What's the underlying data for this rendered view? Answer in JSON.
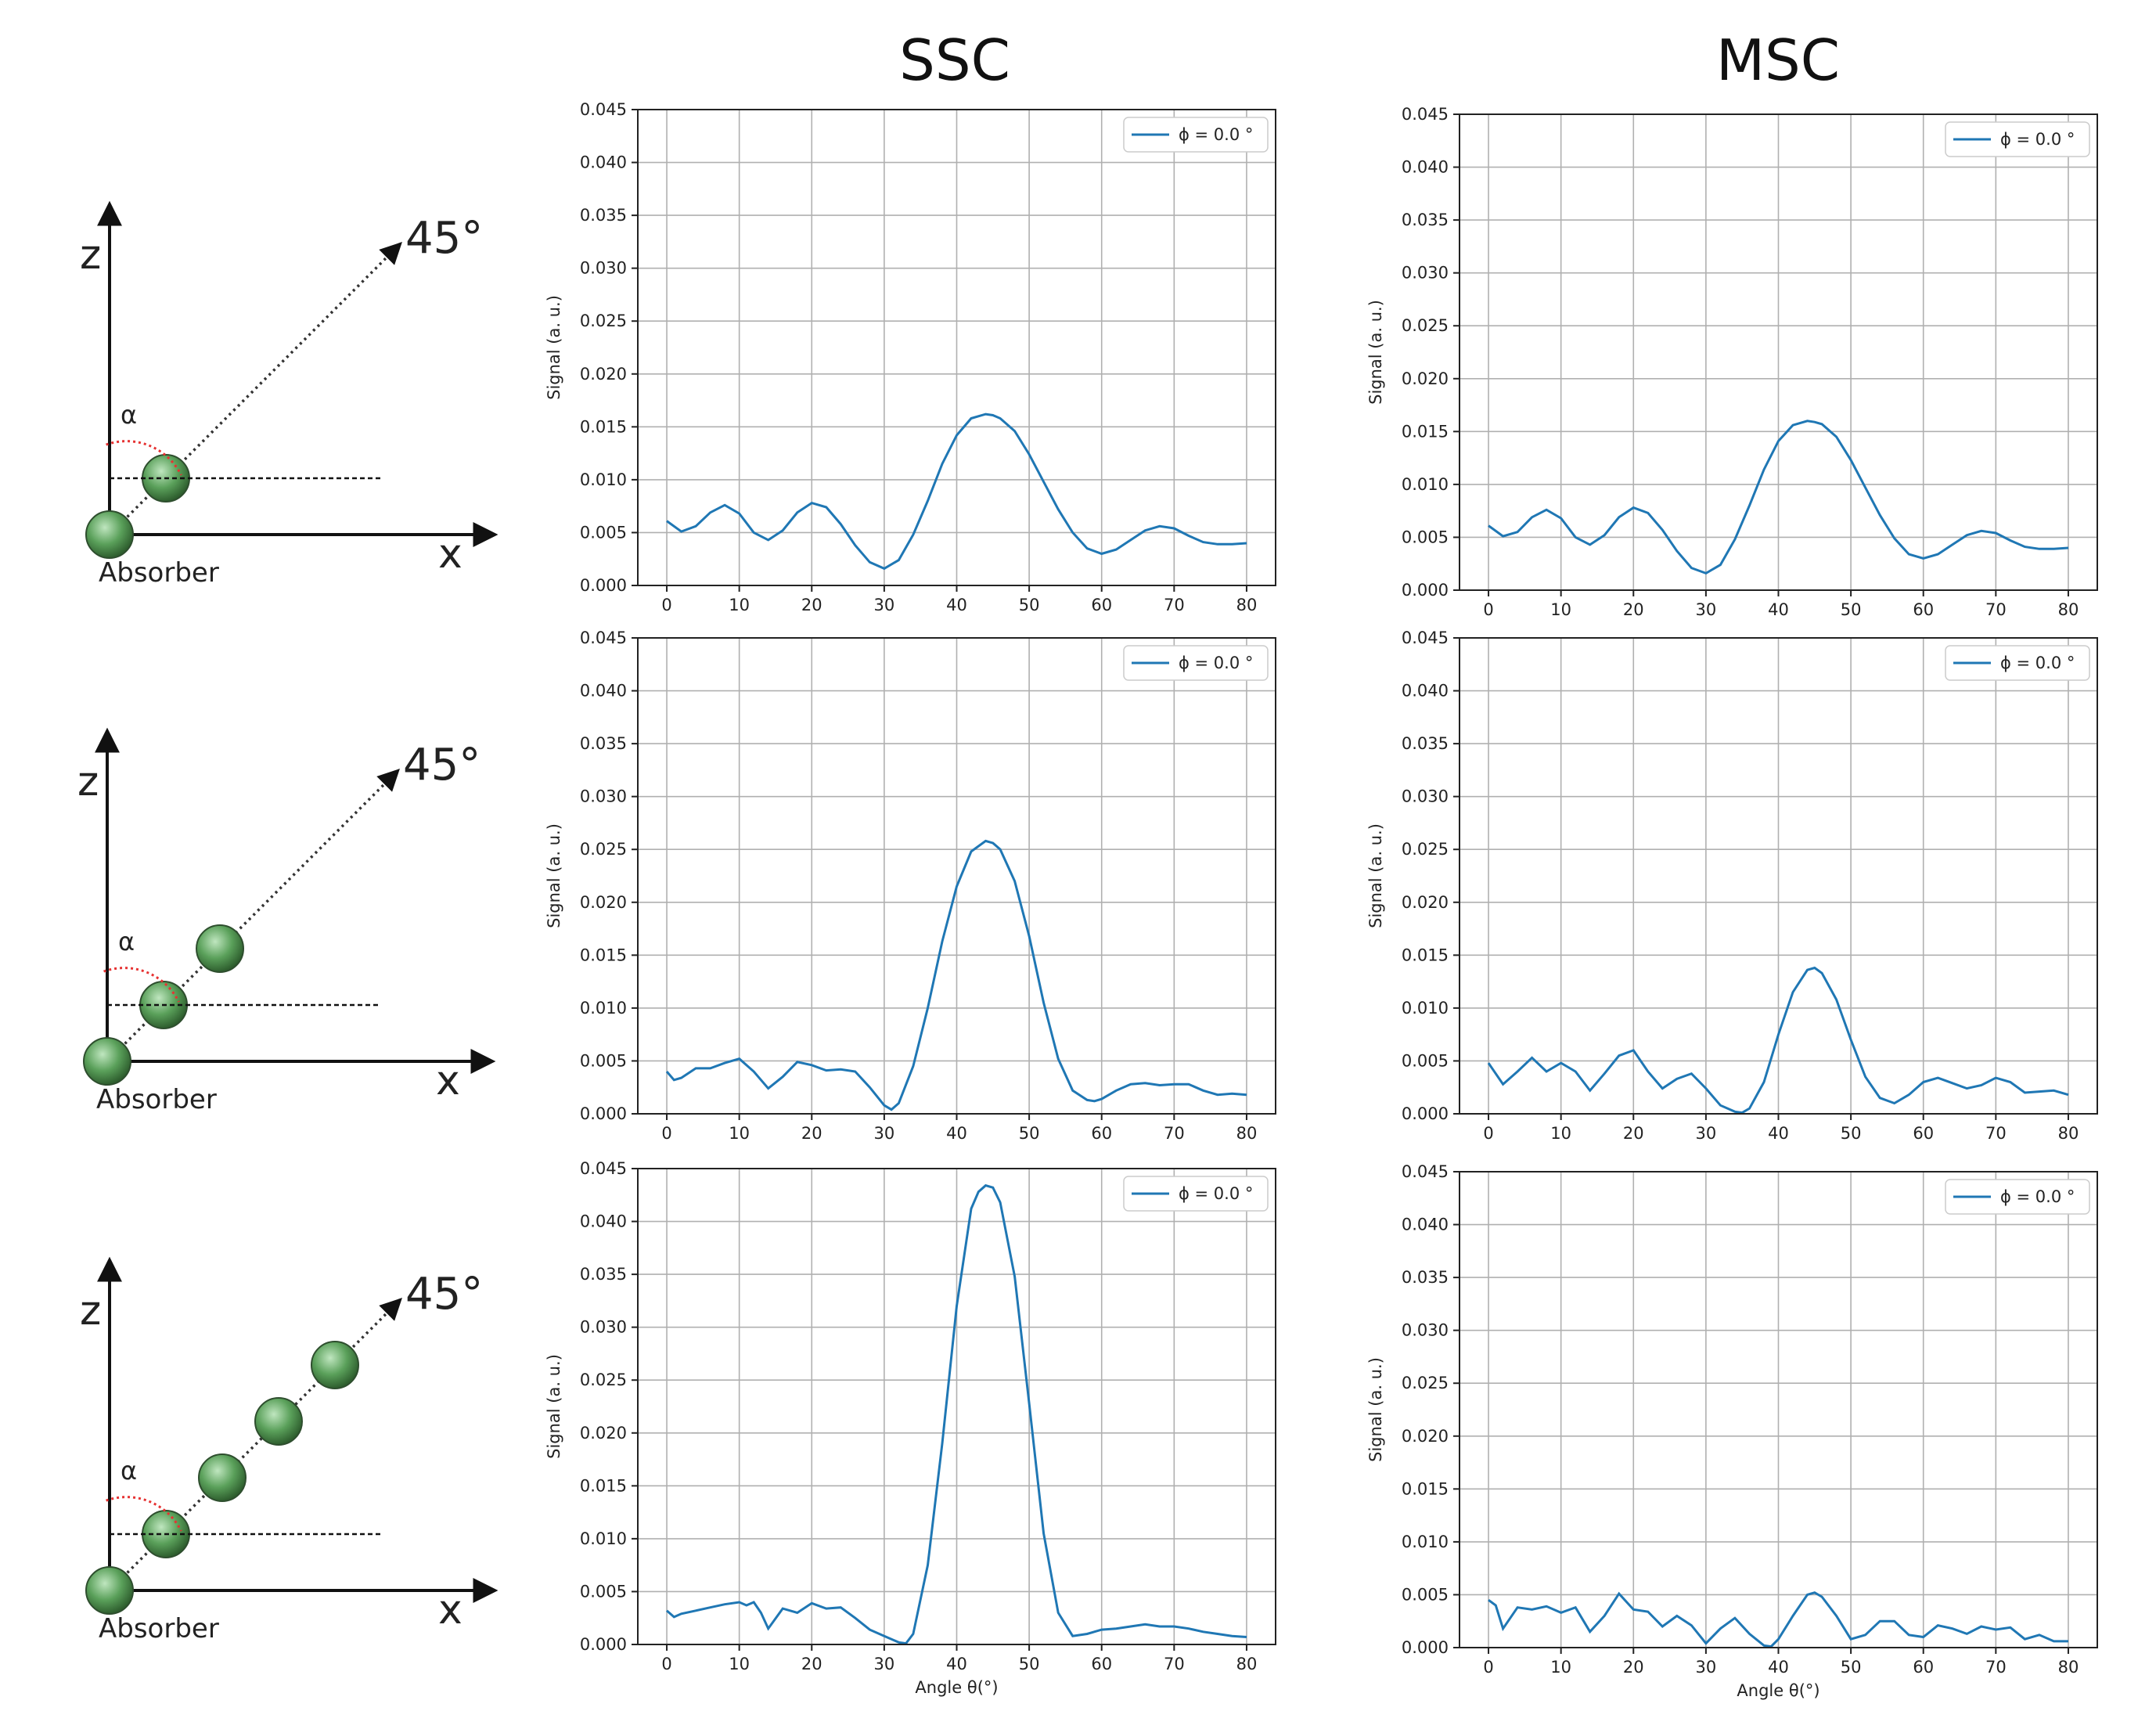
{
  "columns": {
    "ssc": "SSC",
    "msc": "MSC"
  },
  "diagrams": [
    {
      "z_label": "z",
      "x_label": "x",
      "angle_label": "45°",
      "alpha_label": "α",
      "absorber_label": "Absorber",
      "scatterers": 1
    },
    {
      "z_label": "z",
      "x_label": "x",
      "angle_label": "45°",
      "alpha_label": "α",
      "absorber_label": "Absorber",
      "scatterers": 2
    },
    {
      "z_label": "z",
      "x_label": "x",
      "angle_label": "45°",
      "alpha_label": "α",
      "absorber_label": "Absorber",
      "scatterers": 4
    }
  ],
  "colors": {
    "series": "#1f77b4",
    "atom": "#5aa05a",
    "alpha": "#e63232"
  },
  "chart_data": [
    {
      "type": "line",
      "panel": "SSC row 1",
      "ylabel": "Signal (a. u.)",
      "xlabel": "",
      "xlim": [
        0,
        80
      ],
      "ylim": [
        0,
        0.045
      ],
      "grid": true,
      "legend_position": "top-right",
      "xticks": [
        "0",
        "10",
        "20",
        "30",
        "40",
        "50",
        "60",
        "70",
        "80"
      ],
      "yticks": [
        "0.000",
        "0.005",
        "0.010",
        "0.015",
        "0.020",
        "0.025",
        "0.030",
        "0.035",
        "0.040",
        "0.045"
      ],
      "series": [
        {
          "name": "ϕ = 0.0 °",
          "x": [
            0,
            2,
            4,
            6,
            8,
            10,
            12,
            14,
            16,
            18,
            20,
            22,
            24,
            26,
            28,
            30,
            32,
            34,
            36,
            38,
            40,
            42,
            44,
            45,
            46,
            48,
            50,
            52,
            54,
            56,
            58,
            60,
            62,
            64,
            66,
            68,
            70,
            72,
            74,
            76,
            78,
            80
          ],
          "y": [
            0.0061,
            0.0051,
            0.0056,
            0.0069,
            0.0076,
            0.0068,
            0.005,
            0.0043,
            0.0052,
            0.0069,
            0.0078,
            0.0074,
            0.0058,
            0.0038,
            0.0022,
            0.0016,
            0.0024,
            0.0048,
            0.008,
            0.0115,
            0.0142,
            0.0158,
            0.0162,
            0.0161,
            0.0158,
            0.0146,
            0.0124,
            0.0098,
            0.0072,
            0.005,
            0.0035,
            0.003,
            0.0034,
            0.0043,
            0.0052,
            0.0056,
            0.0054,
            0.0047,
            0.0041,
            0.0039,
            0.0039,
            0.004
          ]
        }
      ]
    },
    {
      "type": "line",
      "panel": "MSC row 1",
      "ylabel": "Signal (a. u.)",
      "xlabel": "",
      "xlim": [
        0,
        80
      ],
      "ylim": [
        0,
        0.045
      ],
      "grid": true,
      "legend_position": "top-right",
      "xticks": [
        "0",
        "10",
        "20",
        "30",
        "40",
        "50",
        "60",
        "70",
        "80"
      ],
      "yticks": [
        "0.000",
        "0.005",
        "0.010",
        "0.015",
        "0.020",
        "0.025",
        "0.030",
        "0.035",
        "0.040",
        "0.045"
      ],
      "series": [
        {
          "name": "ϕ = 0.0 °",
          "x": [
            0,
            2,
            4,
            6,
            8,
            10,
            12,
            14,
            16,
            18,
            20,
            22,
            24,
            26,
            28,
            30,
            32,
            34,
            36,
            38,
            40,
            42,
            44,
            45,
            46,
            48,
            50,
            52,
            54,
            56,
            58,
            60,
            62,
            64,
            66,
            68,
            70,
            72,
            74,
            76,
            78,
            80
          ],
          "y": [
            0.0061,
            0.0051,
            0.0055,
            0.0069,
            0.0076,
            0.0068,
            0.005,
            0.0043,
            0.0052,
            0.0069,
            0.0078,
            0.0073,
            0.0057,
            0.0037,
            0.0021,
            0.0016,
            0.0024,
            0.0048,
            0.008,
            0.0114,
            0.0141,
            0.0156,
            0.016,
            0.0159,
            0.0157,
            0.0145,
            0.0123,
            0.0097,
            0.0071,
            0.0049,
            0.0034,
            0.003,
            0.0034,
            0.0043,
            0.0052,
            0.0056,
            0.0054,
            0.0047,
            0.0041,
            0.0039,
            0.0039,
            0.004
          ]
        }
      ]
    },
    {
      "type": "line",
      "panel": "SSC row 2",
      "ylabel": "Signal (a. u.)",
      "xlabel": "",
      "xlim": [
        0,
        80
      ],
      "ylim": [
        0,
        0.045
      ],
      "grid": true,
      "legend_position": "top-right",
      "xticks": [
        "0",
        "10",
        "20",
        "30",
        "40",
        "50",
        "60",
        "70",
        "80"
      ],
      "yticks": [
        "0.000",
        "0.005",
        "0.010",
        "0.015",
        "0.020",
        "0.025",
        "0.030",
        "0.035",
        "0.040",
        "0.045"
      ],
      "series": [
        {
          "name": "ϕ = 0.0 °",
          "x": [
            0,
            1,
            2,
            4,
            6,
            8,
            10,
            12,
            14,
            16,
            18,
            20,
            22,
            24,
            26,
            28,
            30,
            31,
            32,
            34,
            36,
            38,
            40,
            42,
            44,
            45,
            46,
            48,
            50,
            52,
            54,
            56,
            58,
            59,
            60,
            62,
            64,
            66,
            68,
            70,
            72,
            74,
            76,
            78,
            80
          ],
          "y": [
            0.004,
            0.0032,
            0.0034,
            0.0043,
            0.0043,
            0.0048,
            0.0052,
            0.004,
            0.0024,
            0.0035,
            0.0049,
            0.0046,
            0.0041,
            0.0042,
            0.004,
            0.0025,
            0.0008,
            0.0004,
            0.001,
            0.0045,
            0.01,
            0.0163,
            0.0215,
            0.0248,
            0.0258,
            0.0256,
            0.025,
            0.022,
            0.0168,
            0.0105,
            0.0052,
            0.0022,
            0.0013,
            0.0012,
            0.0014,
            0.0022,
            0.0028,
            0.0029,
            0.0027,
            0.0028,
            0.0028,
            0.0022,
            0.0018,
            0.0019,
            0.0018
          ]
        }
      ]
    },
    {
      "type": "line",
      "panel": "MSC row 2",
      "ylabel": "Signal (a. u.)",
      "xlabel": "",
      "xlim": [
        0,
        80
      ],
      "ylim": [
        0,
        0.045
      ],
      "grid": true,
      "legend_position": "top-right",
      "xticks": [
        "0",
        "10",
        "20",
        "30",
        "40",
        "50",
        "60",
        "70",
        "80"
      ],
      "yticks": [
        "0.000",
        "0.005",
        "0.010",
        "0.015",
        "0.020",
        "0.025",
        "0.030",
        "0.035",
        "0.040",
        "0.045"
      ],
      "series": [
        {
          "name": "ϕ = 0.0 °",
          "x": [
            0,
            2,
            4,
            6,
            8,
            10,
            12,
            14,
            16,
            18,
            20,
            22,
            24,
            26,
            28,
            30,
            32,
            34,
            35,
            36,
            38,
            40,
            42,
            44,
            45,
            46,
            48,
            50,
            52,
            54,
            56,
            58,
            60,
            62,
            64,
            66,
            68,
            70,
            72,
            74,
            76,
            78,
            80
          ],
          "y": [
            0.0048,
            0.0028,
            0.004,
            0.0053,
            0.004,
            0.0048,
            0.004,
            0.0022,
            0.0038,
            0.0055,
            0.006,
            0.004,
            0.0024,
            0.0033,
            0.0038,
            0.0024,
            0.0008,
            0.0002,
            0.0001,
            0.0005,
            0.003,
            0.0075,
            0.0115,
            0.0136,
            0.0138,
            0.0133,
            0.0108,
            0.007,
            0.0035,
            0.0015,
            0.001,
            0.0018,
            0.003,
            0.0034,
            0.0029,
            0.0024,
            0.0027,
            0.0034,
            0.003,
            0.002,
            0.0021,
            0.0022,
            0.0018
          ]
        }
      ]
    },
    {
      "type": "line",
      "panel": "SSC row 3",
      "ylabel": "Signal (a. u.)",
      "xlabel": "Angle θ(°)",
      "xlim": [
        0,
        80
      ],
      "ylim": [
        0,
        0.045
      ],
      "grid": true,
      "legend_position": "top-right",
      "xticks": [
        "0",
        "10",
        "20",
        "30",
        "40",
        "50",
        "60",
        "70",
        "80"
      ],
      "yticks": [
        "0.000",
        "0.005",
        "0.010",
        "0.015",
        "0.020",
        "0.025",
        "0.030",
        "0.035",
        "0.040",
        "0.045"
      ],
      "series": [
        {
          "name": "ϕ = 0.0 °",
          "x": [
            0,
            1,
            2,
            4,
            6,
            8,
            10,
            11,
            12,
            13,
            14,
            16,
            18,
            20,
            22,
            24,
            26,
            28,
            30,
            32,
            33,
            34,
            36,
            38,
            40,
            42,
            43,
            44,
            45,
            46,
            48,
            50,
            52,
            54,
            56,
            58,
            60,
            62,
            64,
            66,
            68,
            70,
            72,
            74,
            76,
            78,
            80
          ],
          "y": [
            0.0032,
            0.0026,
            0.0029,
            0.0032,
            0.0035,
            0.0038,
            0.004,
            0.0037,
            0.004,
            0.003,
            0.0015,
            0.0034,
            0.003,
            0.0039,
            0.0034,
            0.0035,
            0.0025,
            0.0014,
            0.0008,
            0.0002,
            0.0001,
            0.001,
            0.0075,
            0.019,
            0.032,
            0.0412,
            0.0428,
            0.0434,
            0.0432,
            0.0418,
            0.0348,
            0.0228,
            0.0105,
            0.003,
            0.0008,
            0.001,
            0.0014,
            0.0015,
            0.0017,
            0.0019,
            0.0017,
            0.0017,
            0.0015,
            0.0012,
            0.001,
            0.0008,
            0.0007
          ]
        }
      ]
    },
    {
      "type": "line",
      "panel": "MSC row 3",
      "ylabel": "Signal (a. u.)",
      "xlabel": "Angle θ(°)",
      "xlim": [
        0,
        80
      ],
      "ylim": [
        0,
        0.045
      ],
      "grid": true,
      "legend_position": "top-right",
      "xticks": [
        "0",
        "10",
        "20",
        "30",
        "40",
        "50",
        "60",
        "70",
        "80"
      ],
      "yticks": [
        "0.000",
        "0.005",
        "0.010",
        "0.015",
        "0.020",
        "0.025",
        "0.030",
        "0.035",
        "0.040",
        "0.045"
      ],
      "series": [
        {
          "name": "ϕ = 0.0 °",
          "x": [
            0,
            1,
            2,
            4,
            6,
            8,
            10,
            12,
            14,
            16,
            18,
            20,
            22,
            24,
            26,
            28,
            30,
            32,
            34,
            36,
            38,
            39,
            40,
            42,
            44,
            45,
            46,
            48,
            50,
            52,
            54,
            56,
            58,
            60,
            62,
            64,
            66,
            68,
            70,
            72,
            74,
            76,
            78,
            80
          ],
          "y": [
            0.0045,
            0.004,
            0.0018,
            0.0038,
            0.0036,
            0.0039,
            0.0033,
            0.0038,
            0.0015,
            0.003,
            0.0051,
            0.0036,
            0.0034,
            0.002,
            0.003,
            0.0021,
            0.0004,
            0.0018,
            0.0028,
            0.0013,
            0.0002,
            0.0001,
            0.0008,
            0.003,
            0.005,
            0.0052,
            0.0048,
            0.003,
            0.0008,
            0.0012,
            0.0025,
            0.0025,
            0.0012,
            0.001,
            0.0021,
            0.0018,
            0.0013,
            0.002,
            0.0017,
            0.0019,
            0.0008,
            0.0012,
            0.0006,
            0.0006
          ]
        }
      ]
    }
  ]
}
